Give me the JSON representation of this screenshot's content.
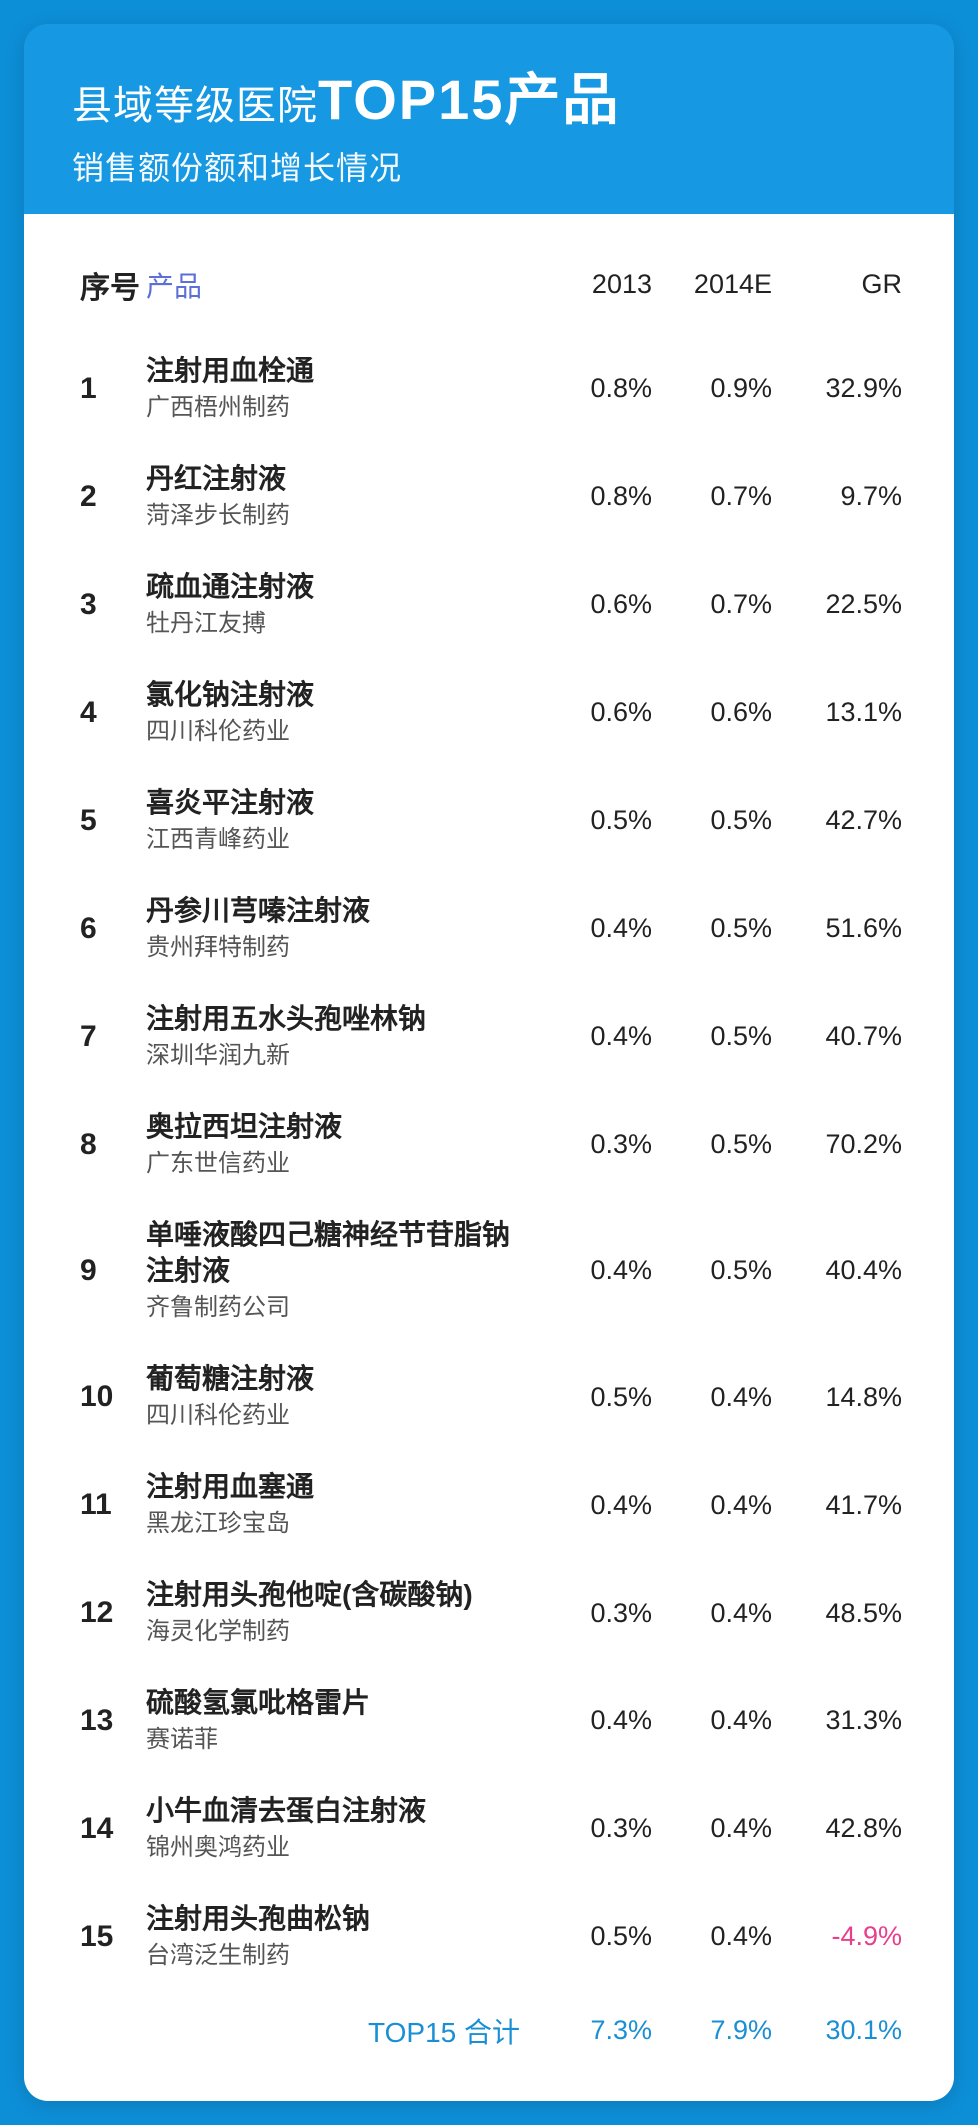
{
  "colors": {
    "page_bg": "#0d8fd8",
    "header_bg": "#1798e2",
    "card_bg": "#ffffff",
    "header_text": "#ffffff",
    "col_header_text": "#5b6fd6",
    "body_text": "#222222",
    "subtext": "#555555",
    "total_text": "#1a8fd4",
    "negative": "#e83e8c"
  },
  "header": {
    "title_prefix": "县域等级医院",
    "title_emph": "TOP15产品",
    "subtitle": "销售额份额和增长情况"
  },
  "columns": {
    "seq": "序号",
    "product": "产品",
    "y2013": "2013",
    "y2014e": "2014E",
    "gr": "GR"
  },
  "rows": [
    {
      "seq": "1",
      "name": "注射用血栓通",
      "company": "广西梧州制药",
      "y2013": "0.8%",
      "y2014e": "0.9%",
      "gr": "32.9%",
      "neg": false
    },
    {
      "seq": "2",
      "name": "丹红注射液",
      "company": "菏泽步长制药",
      "y2013": "0.8%",
      "y2014e": "0.7%",
      "gr": "9.7%",
      "neg": false
    },
    {
      "seq": "3",
      "name": "疏血通注射液",
      "company": "牡丹江友搏",
      "y2013": "0.6%",
      "y2014e": "0.7%",
      "gr": "22.5%",
      "neg": false
    },
    {
      "seq": "4",
      "name": "氯化钠注射液",
      "company": "四川科伦药业",
      "y2013": "0.6%",
      "y2014e": "0.6%",
      "gr": "13.1%",
      "neg": false
    },
    {
      "seq": "5",
      "name": "喜炎平注射液",
      "company": "江西青峰药业",
      "y2013": "0.5%",
      "y2014e": "0.5%",
      "gr": "42.7%",
      "neg": false
    },
    {
      "seq": "6",
      "name": "丹参川芎嗪注射液",
      "company": "贵州拜特制药",
      "y2013": "0.4%",
      "y2014e": "0.5%",
      "gr": "51.6%",
      "neg": false
    },
    {
      "seq": "7",
      "name": "注射用五水头孢唑林钠",
      "company": "深圳华润九新",
      "y2013": "0.4%",
      "y2014e": "0.5%",
      "gr": "40.7%",
      "neg": false
    },
    {
      "seq": "8",
      "name": "奥拉西坦注射液",
      "company": "广东世信药业",
      "y2013": "0.3%",
      "y2014e": "0.5%",
      "gr": "70.2%",
      "neg": false
    },
    {
      "seq": "9",
      "name": "单唾液酸四己糖神经节苷脂钠注射液",
      "company": "齐鲁制药公司",
      "y2013": "0.4%",
      "y2014e": "0.5%",
      "gr": "40.4%",
      "neg": false
    },
    {
      "seq": "10",
      "name": "葡萄糖注射液",
      "company": "四川科伦药业",
      "y2013": "0.5%",
      "y2014e": "0.4%",
      "gr": "14.8%",
      "neg": false
    },
    {
      "seq": "11",
      "name": "注射用血塞通",
      "company": "黑龙江珍宝岛",
      "y2013": "0.4%",
      "y2014e": "0.4%",
      "gr": "41.7%",
      "neg": false
    },
    {
      "seq": "12",
      "name": "注射用头孢他啶(含碳酸钠)",
      "company": "海灵化学制药",
      "y2013": "0.3%",
      "y2014e": "0.4%",
      "gr": "48.5%",
      "neg": false
    },
    {
      "seq": "13",
      "name": "硫酸氢氯吡格雷片",
      "company": "赛诺菲",
      "y2013": "0.4%",
      "y2014e": "0.4%",
      "gr": "31.3%",
      "neg": false
    },
    {
      "seq": "14",
      "name": "小牛血清去蛋白注射液",
      "company": "锦州奥鸿药业",
      "y2013": "0.3%",
      "y2014e": "0.4%",
      "gr": "42.8%",
      "neg": false
    },
    {
      "seq": "15",
      "name": "注射用头孢曲松钠",
      "company": "台湾泛生制药",
      "y2013": "0.5%",
      "y2014e": "0.4%",
      "gr": "-4.9%",
      "neg": true
    }
  ],
  "total": {
    "label": "TOP15 合计",
    "y2013": "7.3%",
    "y2014e": "7.9%",
    "gr": "30.1%"
  }
}
